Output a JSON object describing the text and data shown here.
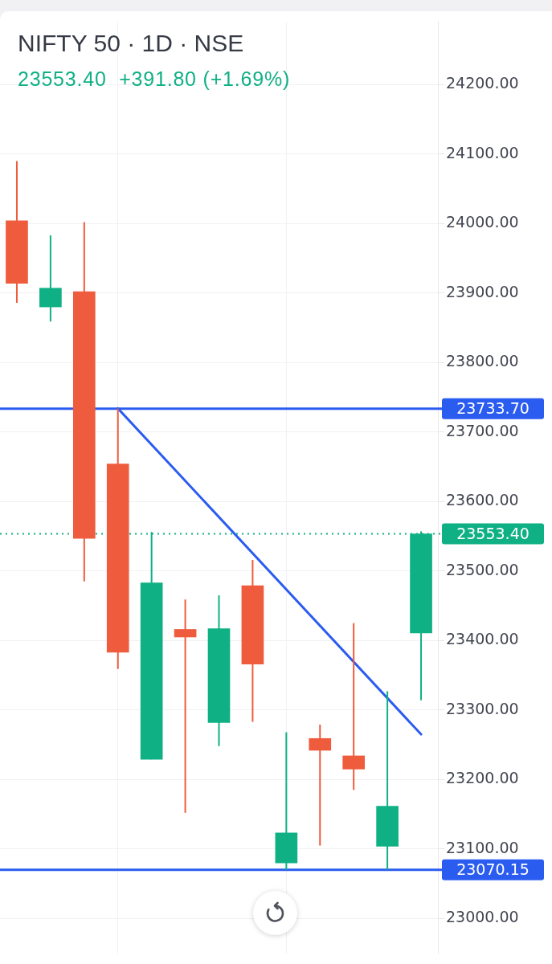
{
  "chart_data": {
    "type": "candlestick",
    "title": "NIFTY 50 · 1D · NSE",
    "subtitle": "23553.40  +391.80 (+1.69%)",
    "categories": [
      null,
      null,
      null,
      null,
      null,
      null,
      null,
      null,
      null,
      null,
      null,
      null,
      null
    ],
    "ohlc": [
      [
        24004,
        24090,
        23886,
        23914
      ],
      [
        23880,
        23983,
        23859,
        23907
      ],
      [
        23902,
        24002,
        23485,
        23547
      ],
      [
        23654,
        23734,
        23359,
        23383
      ],
      [
        23229,
        23556,
        23229,
        23483
      ],
      [
        23416,
        23459,
        23152,
        23405
      ],
      [
        23282,
        23465,
        23248,
        23417
      ],
      [
        23479,
        23516,
        23283,
        23366
      ],
      [
        23080,
        23268,
        23070,
        23123
      ],
      [
        23259,
        23279,
        23105,
        23242
      ],
      [
        23234,
        23425,
        23185,
        23215
      ],
      [
        23104,
        23327,
        23070,
        23161.6
      ],
      [
        23411,
        23557,
        23314,
        23553.4
      ]
    ],
    "colors": [
      "#ee5b3d",
      "#10b085",
      "#ee5b3d",
      "#ee5b3d",
      "#10b085",
      "#ee5b3d",
      "#10b085",
      "#ee5b3d",
      "#10b085",
      "#ee5b3d",
      "#ee5b3d",
      "#10b085",
      "#10b085"
    ],
    "series": [
      {
        "type": "line",
        "color": "#2b5cf0",
        "values": [
          null,
          null,
          null,
          23734,
          null,
          null,
          null,
          null,
          null,
          null,
          null,
          null,
          23265
        ]
      }
    ],
    "ylim": [
      22950,
      24290
    ],
    "yticks": [
      {
        "value": 23000,
        "label": "23000.00"
      },
      {
        "value": 23100,
        "label": "23100.00"
      },
      {
        "value": 23200,
        "label": "23200.00"
      },
      {
        "value": 23300,
        "label": "23300.00"
      },
      {
        "value": 23400,
        "label": "23400.00"
      },
      {
        "value": 23500,
        "label": "23500.00"
      },
      {
        "value": 23600,
        "label": "23600.00"
      },
      {
        "value": 23700,
        "label": "23700.00"
      },
      {
        "value": 23800,
        "label": "23800.00"
      },
      {
        "value": 23900,
        "label": "23900.00"
      },
      {
        "value": 24000,
        "label": "24000.00"
      },
      {
        "value": 24100,
        "label": "24100.00"
      },
      {
        "value": 24200,
        "label": "24200.00"
      }
    ],
    "ref_lines": [
      {
        "axis": "y",
        "value": 23733.7,
        "label": "23733.70",
        "color": "#2b5cf0"
      },
      {
        "axis": "y",
        "value": 23553.4,
        "label": "23553.40",
        "color": "#10b085",
        "line_style": "dotted"
      },
      {
        "axis": "y",
        "value": 23070.15,
        "label": "23070.15",
        "color": "#2b5cf0"
      }
    ],
    "grid": true,
    "tick_labels": "y"
  }
}
